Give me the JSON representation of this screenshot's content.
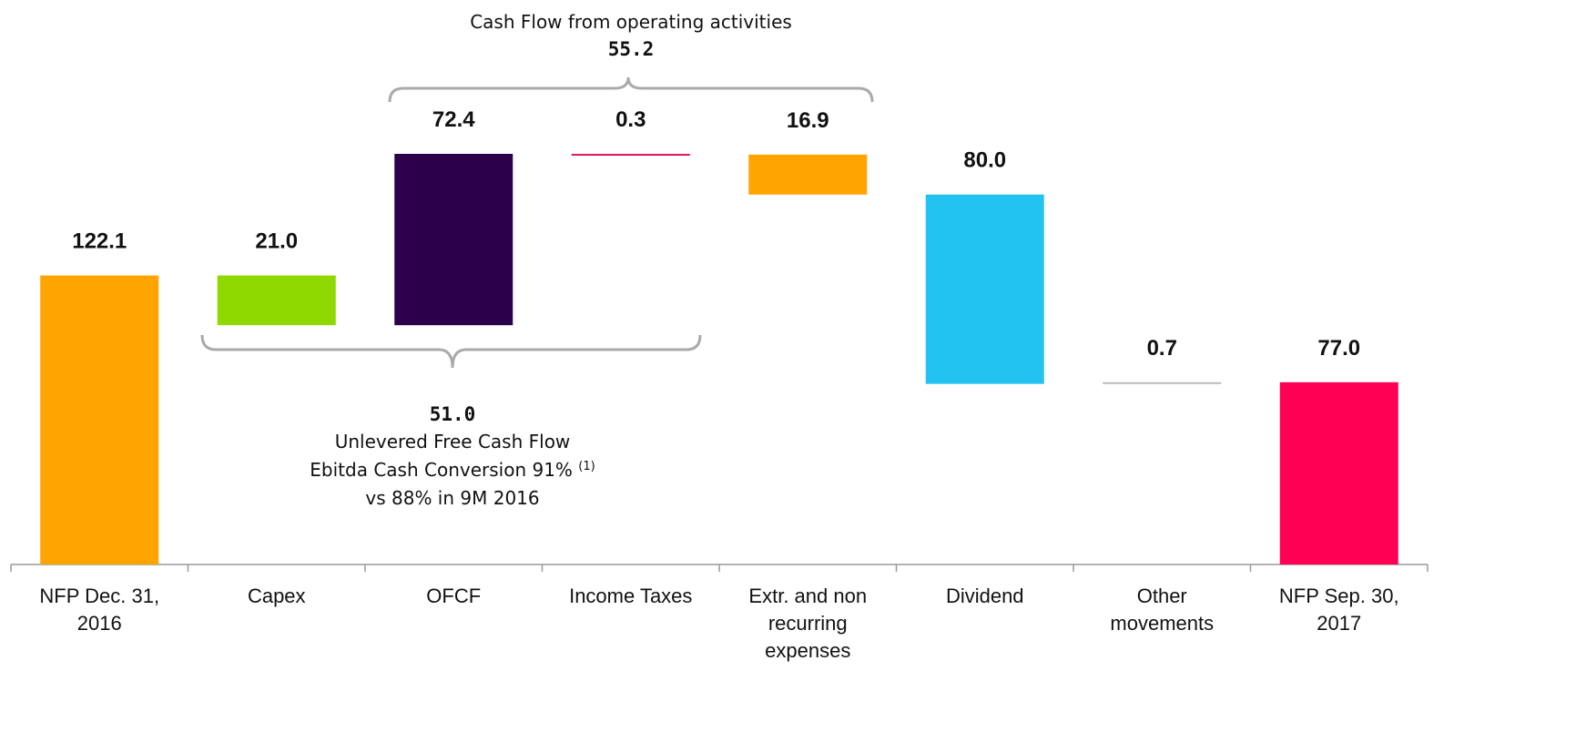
{
  "chart_data": {
    "type": "waterfall",
    "categories": [
      "NFP Dec. 31, 2016",
      "Capex",
      "OFCF",
      "Income Taxes",
      "Extr. and non recurring expenses",
      "Dividend",
      "Other movements",
      "NFP Sep. 30, 2017"
    ],
    "values": [
      122.1,
      -21.0,
      72.4,
      -0.3,
      -16.9,
      -80.0,
      0.7,
      77.0
    ],
    "value_labels": [
      "122.1",
      "21.0",
      "72.4",
      "0.3",
      "16.9",
      "80.0",
      "0.7",
      "77.0"
    ],
    "measure": [
      "absolute",
      "relative",
      "relative",
      "relative",
      "relative",
      "relative",
      "relative",
      "total"
    ],
    "colors": [
      "#FFA400",
      "#8FD900",
      "#2D004B",
      "#E8175D",
      "#FFA400",
      "#22C3F0",
      "#BBBBBB",
      "#FF0055"
    ],
    "annotations": {
      "operating": {
        "title": "Cash Flow from operating activities",
        "value": "55.2"
      },
      "unlevered": {
        "value": "51.0",
        "title": "Unlevered Free Cash Flow",
        "conversion": "Ebitda Cash Conversion 91%",
        "footnote": "(1)",
        "comparison": "vs 88% in 9M 2016"
      }
    }
  }
}
